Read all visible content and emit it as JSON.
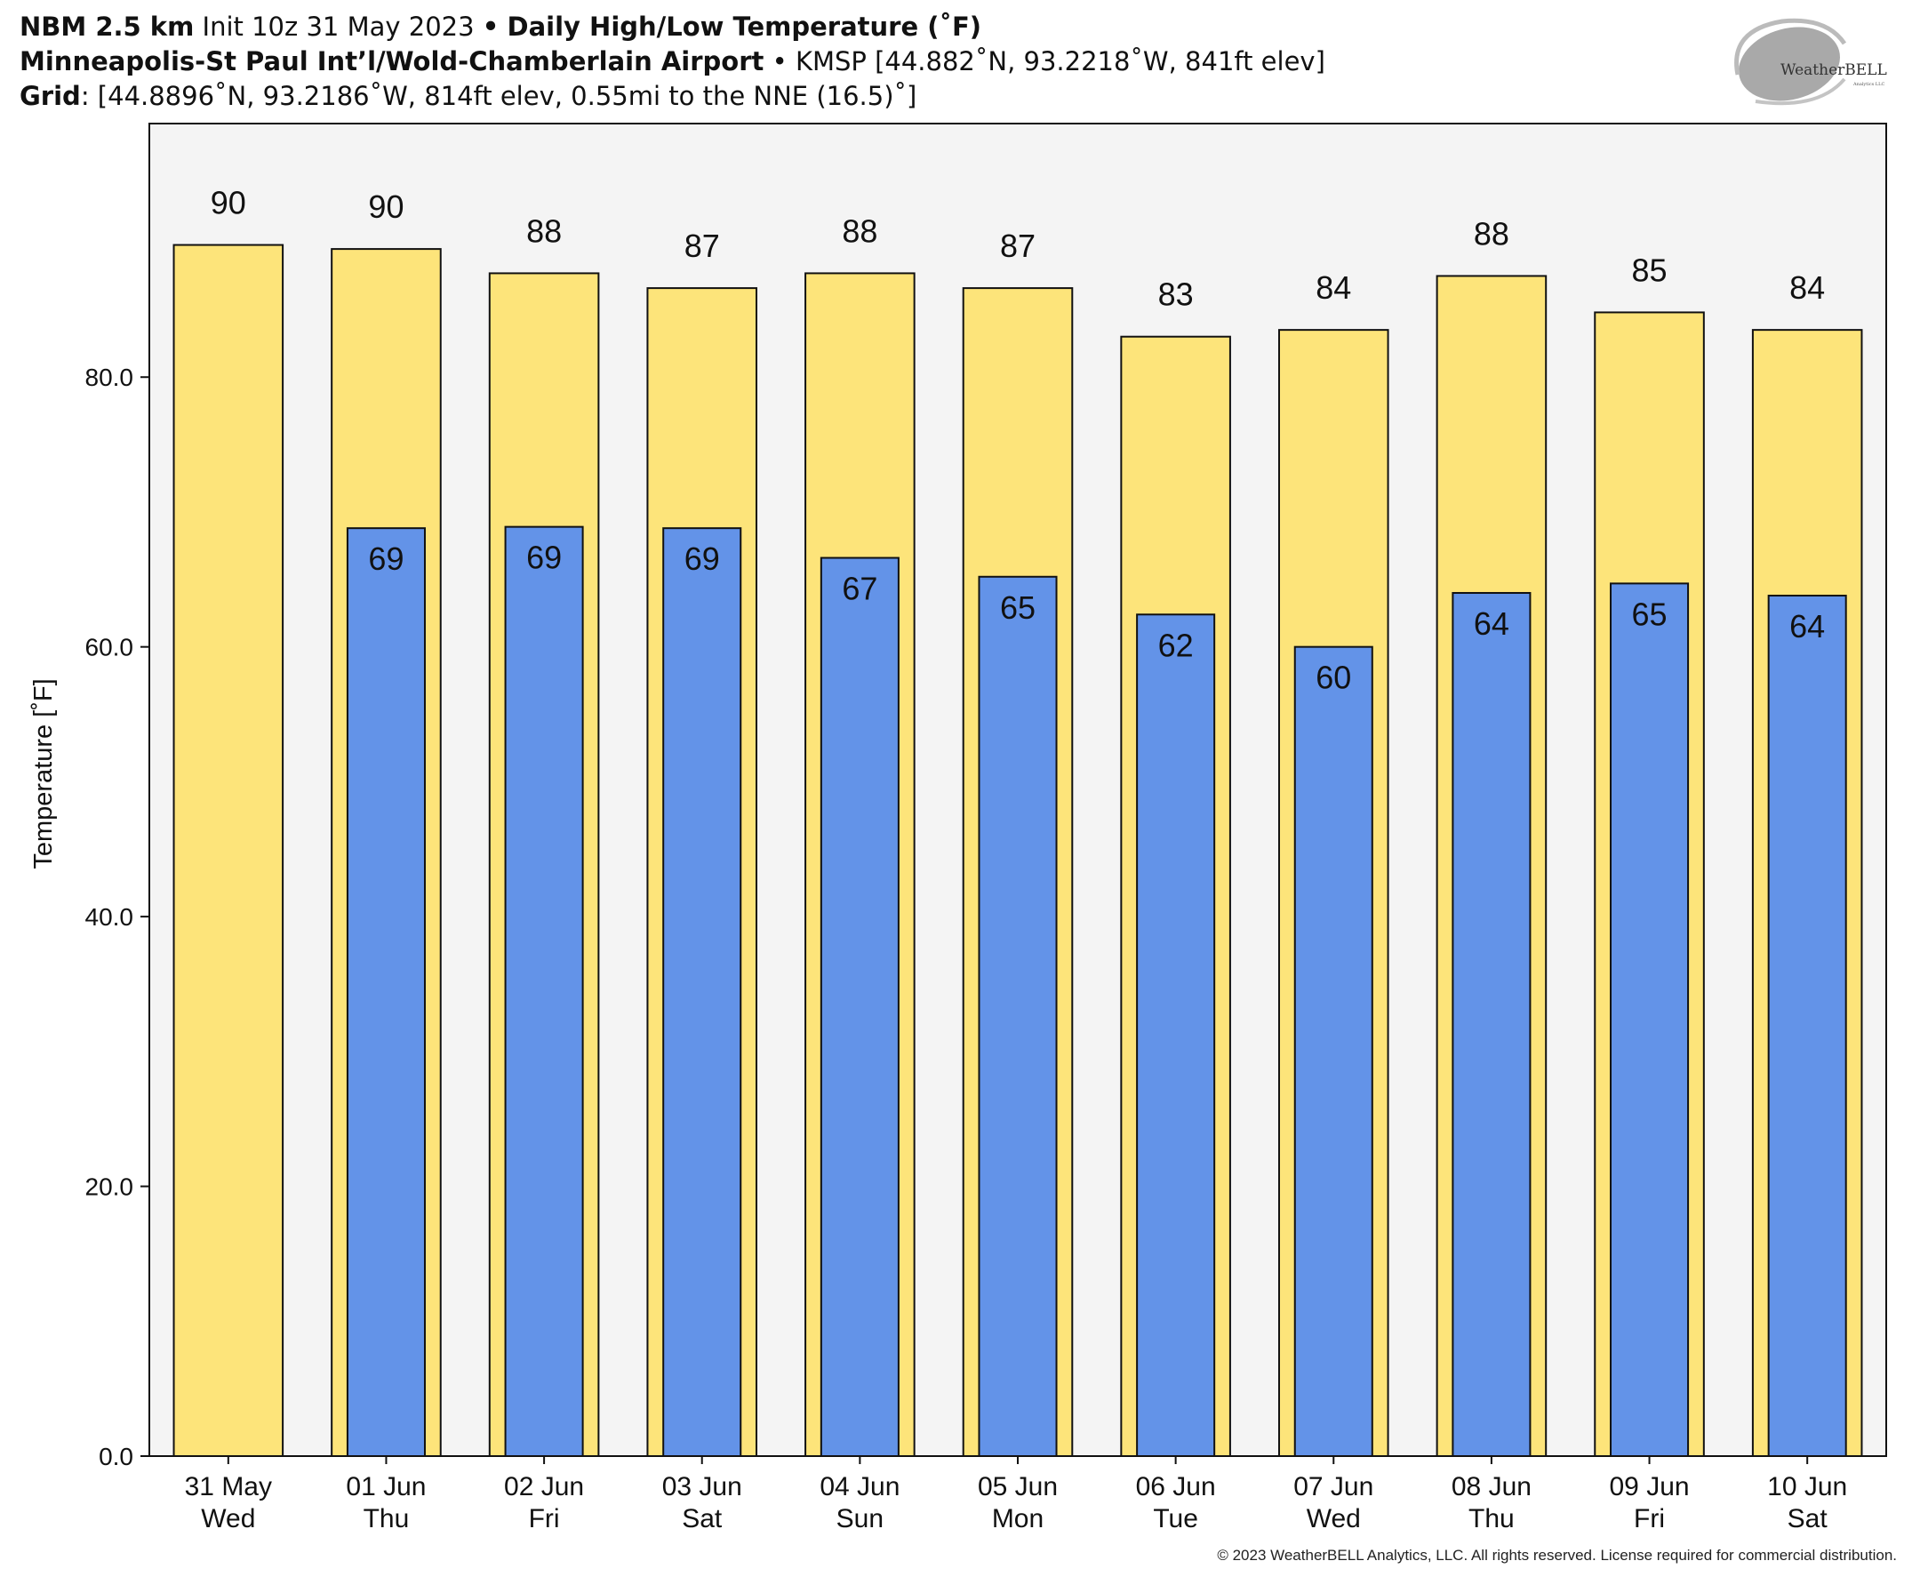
{
  "header": {
    "line1": {
      "model": "NBM 2.5 km",
      "init": "Init 10z 31 May 2023",
      "sep": "•",
      "product": "Daily High/Low Temperature (˚F)"
    },
    "line2": {
      "station": "Minneapolis-St Paul Int’l/Wold-Chamberlain Airport",
      "sep": "•",
      "details": "KMSP [44.882˚N, 93.2218˚W, 841ft elev]"
    },
    "line3": {
      "label": "Grid",
      "details": ": [44.8896˚N, 93.2186˚W, 814ft elev, 0.55mi to the NNE (16.5)˚]"
    }
  },
  "logo": {
    "main": "WeatherBELL",
    "sub": "Analytics LLC"
  },
  "footer": "© 2023 WeatherBELL Analytics, LLC. All rights reserved. License required for commercial distribution.",
  "colors": {
    "high": "#fde47a",
    "low": "#6393e8",
    "plot_bg": "#f4f4f4",
    "edge": "#111111"
  },
  "chart_data": {
    "type": "bar",
    "title": "Daily High/Low Temperature (˚F)",
    "xlabel": "",
    "ylabel": "Temperature [˚F]",
    "ylim": [
      0,
      98.8
    ],
    "yticks": [
      0,
      20,
      40,
      60,
      80
    ],
    "ytick_labels": [
      "0.0",
      "20.0",
      "40.0",
      "60.0",
      "80.0"
    ],
    "grid": false,
    "legend": "none",
    "categories": [
      {
        "date": "31 May",
        "dow": "Wed"
      },
      {
        "date": "01 Jun",
        "dow": "Thu"
      },
      {
        "date": "02 Jun",
        "dow": "Fri"
      },
      {
        "date": "03 Jun",
        "dow": "Sat"
      },
      {
        "date": "04 Jun",
        "dow": "Sun"
      },
      {
        "date": "05 Jun",
        "dow": "Mon"
      },
      {
        "date": "06 Jun",
        "dow": "Tue"
      },
      {
        "date": "07 Jun",
        "dow": "Wed"
      },
      {
        "date": "08 Jun",
        "dow": "Thu"
      },
      {
        "date": "09 Jun",
        "dow": "Fri"
      },
      {
        "date": "10 Jun",
        "dow": "Sat"
      }
    ],
    "series": [
      {
        "name": "High",
        "values": [
          89.8,
          89.5,
          87.7,
          86.6,
          87.7,
          86.6,
          83.0,
          83.5,
          87.5,
          84.8,
          83.5
        ],
        "labels": [
          "90",
          "90",
          "88",
          "87",
          "88",
          "87",
          "83",
          "84",
          "88",
          "85",
          "84"
        ]
      },
      {
        "name": "Low",
        "values": [
          null,
          68.8,
          68.9,
          68.8,
          66.6,
          65.2,
          62.4,
          60.0,
          64.0,
          64.7,
          63.8
        ],
        "labels": [
          null,
          "69",
          "69",
          "69",
          "67",
          "65",
          "62",
          "60",
          "64",
          "65",
          "64"
        ]
      }
    ]
  }
}
